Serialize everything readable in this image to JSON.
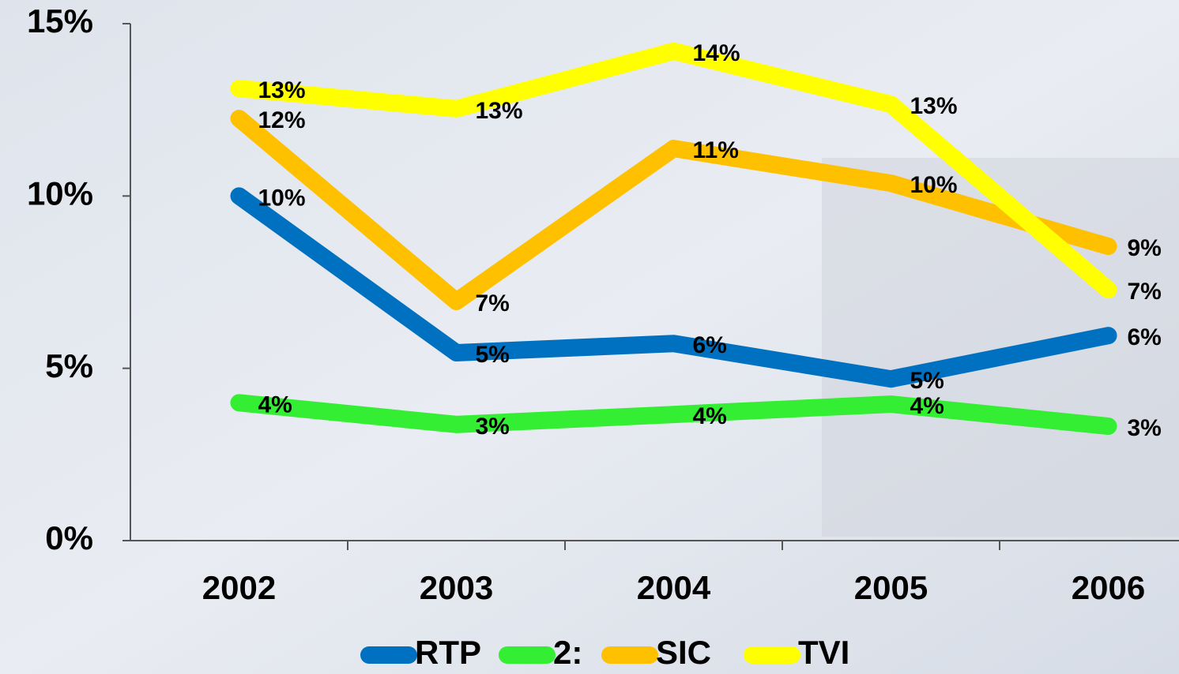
{
  "chart_data": {
    "type": "line",
    "categories": [
      "2002",
      "2003",
      "2004",
      "2005",
      "2006"
    ],
    "series": [
      {
        "name": "RTP",
        "color": "#0070c0",
        "values": [
          10,
          5.45,
          5.72,
          4.69,
          5.95
        ],
        "value_labels": [
          "10%",
          "5%",
          "6%",
          "5%",
          "6%"
        ]
      },
      {
        "name": "2:",
        "color": "#33ee33",
        "values": [
          4.0,
          3.37,
          3.66,
          3.96,
          3.32
        ],
        "value_labels": [
          "4%",
          "3%",
          "4%",
          "4%",
          "3%"
        ]
      },
      {
        "name": "SIC",
        "color": "#ffc000",
        "values": [
          12.25,
          6.94,
          11.38,
          10.37,
          8.54
        ],
        "value_labels": [
          "12%",
          "7%",
          "11%",
          "10%",
          "9%"
        ]
      },
      {
        "name": "TVI",
        "color": "#ffff00",
        "values": [
          13.12,
          12.53,
          14.2,
          12.66,
          7.28
        ],
        "value_labels": [
          "13%",
          "13%",
          "14%",
          "13%",
          "7%"
        ]
      }
    ],
    "ylim": [
      0,
      15
    ],
    "yticks": [
      {
        "value": 0,
        "label": "0%"
      },
      {
        "value": 5,
        "label": "5%"
      },
      {
        "value": 10,
        "label": "10%"
      },
      {
        "value": 15,
        "label": "15%"
      }
    ]
  }
}
